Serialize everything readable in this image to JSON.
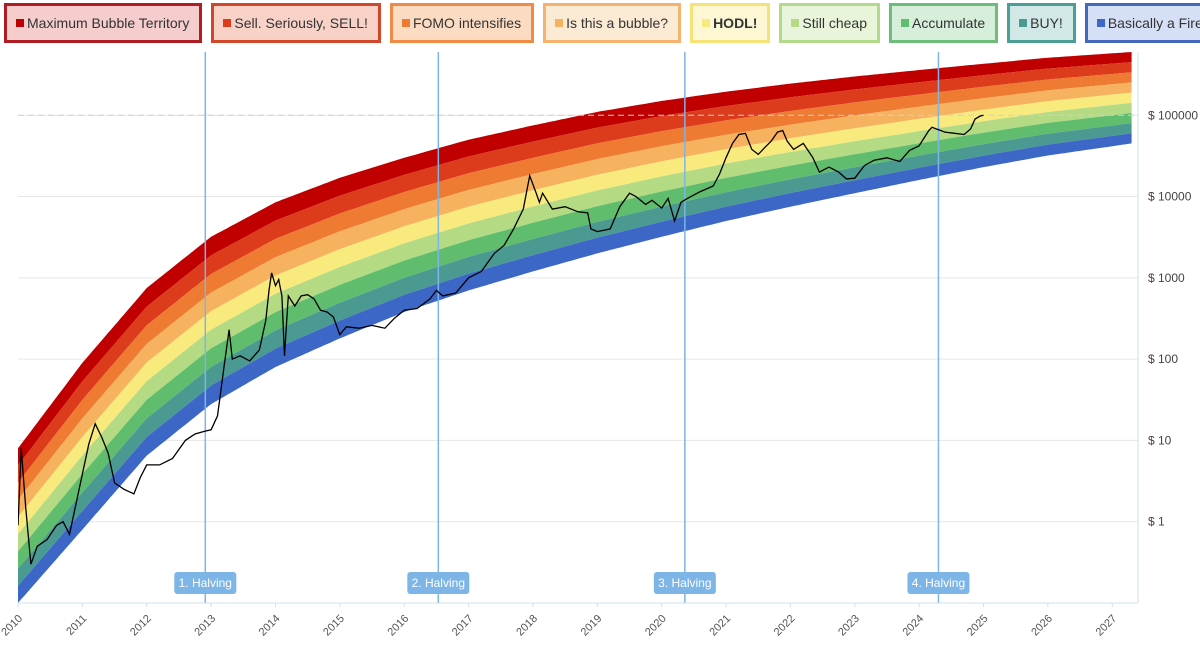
{
  "legend": [
    {
      "label": "Maximum Bubble Territory",
      "color": "#c00000",
      "bg": "#f5cdcd",
      "border": "#b01c24",
      "bold": false
    },
    {
      "label": "Sell. Seriously, SELL!",
      "color": "#dc3b1c",
      "bg": "#f8d1c7",
      "border": "#d2472a",
      "bold": false
    },
    {
      "label": "FOMO intensifies",
      "color": "#ef7a32",
      "bg": "#fbdcc3",
      "border": "#ef8b46",
      "bold": false
    },
    {
      "label": "Is this a bubble?",
      "color": "#f6b25e",
      "bg": "#fcebd4",
      "border": "#f4b36c",
      "bold": false
    },
    {
      "label": "HODL!",
      "color": "#f9ea7e",
      "bg": "#fdf7d4",
      "border": "#f5e37a",
      "bold": true
    },
    {
      "label": "Still cheap",
      "color": "#b4da84",
      "bg": "#e9f5da",
      "border": "#b3d98a",
      "bold": false
    },
    {
      "label": "Accumulate",
      "color": "#60bd6e",
      "bg": "#d6eeda",
      "border": "#6bbd79",
      "bold": false
    },
    {
      "label": "BUY!",
      "color": "#4a9a92",
      "bg": "#d1e8e7",
      "border": "#4e9e98",
      "bold": false
    },
    {
      "label": "Basically a Fire Sale",
      "color": "#3d67c6",
      "bg": "#d5dff5",
      "border": "#4468c0",
      "bold": false
    }
  ],
  "chart_data": {
    "type": "line",
    "y_scale": "log",
    "y_ticks": [
      {
        "value": 1,
        "label": "$ 1"
      },
      {
        "value": 10,
        "label": "$ 10"
      },
      {
        "value": 100,
        "label": "$ 100"
      },
      {
        "value": 1000,
        "label": "$ 1000"
      },
      {
        "value": 10000,
        "label": "$ 10000"
      },
      {
        "value": 100000,
        "label": "$ 100000"
      }
    ],
    "x_ticks": [
      2010,
      2011,
      2012,
      2013,
      2014,
      2015,
      2016,
      2017,
      2018,
      2019,
      2020,
      2021,
      2022,
      2023,
      2024,
      2025,
      2026,
      2027
    ],
    "xlim": [
      2010.0,
      2027.4
    ],
    "ylim": [
      0.1,
      600000
    ],
    "grid": true,
    "reference_line": {
      "value": 100000,
      "style": "dashed"
    },
    "halvings": [
      {
        "label": "1. Halving",
        "x": 2012.91
      },
      {
        "label": "2. Halving",
        "x": 2016.53
      },
      {
        "label": "3. Halving",
        "x": 2020.36
      },
      {
        "label": "4. Halving",
        "x": 2024.3
      }
    ],
    "bands": {
      "colors": [
        "#c00000",
        "#dc3b1c",
        "#ef7a32",
        "#f6b25e",
        "#f9ea7e",
        "#b4da84",
        "#60bd6e",
        "#4a9a92",
        "#3d67c6"
      ],
      "top_boundary": [
        [
          2010.0,
          8
        ],
        [
          2011.0,
          90
        ],
        [
          2012.0,
          750
        ],
        [
          2013.0,
          3200
        ],
        [
          2014.0,
          8500
        ],
        [
          2015.0,
          17000
        ],
        [
          2016.0,
          30000
        ],
        [
          2017.0,
          50000
        ],
        [
          2018.0,
          75000
        ],
        [
          2019.0,
          110000
        ],
        [
          2020.0,
          150000
        ],
        [
          2021.0,
          195000
        ],
        [
          2022.0,
          245000
        ],
        [
          2023.0,
          300000
        ],
        [
          2024.0,
          360000
        ],
        [
          2025.0,
          430000
        ],
        [
          2026.0,
          510000
        ],
        [
          2027.3,
          600000
        ]
      ],
      "bottom_boundary": [
        [
          2010.0,
          0.1
        ],
        [
          2011.0,
          0.8
        ],
        [
          2012.0,
          6.5
        ],
        [
          2013.0,
          28
        ],
        [
          2014.0,
          80
        ],
        [
          2015.0,
          180
        ],
        [
          2016.0,
          380
        ],
        [
          2017.0,
          700
        ],
        [
          2018.0,
          1200
        ],
        [
          2019.0,
          2000
        ],
        [
          2020.0,
          3200
        ],
        [
          2021.0,
          5000
        ],
        [
          2022.0,
          7500
        ],
        [
          2023.0,
          11000
        ],
        [
          2024.0,
          16000
        ],
        [
          2025.0,
          23000
        ],
        [
          2026.0,
          32000
        ],
        [
          2027.3,
          45000
        ]
      ]
    },
    "series": [
      {
        "color": "#000000",
        "points": [
          [
            2010.0,
            0.9
          ],
          [
            2010.05,
            8
          ],
          [
            2010.12,
            1.5
          ],
          [
            2010.2,
            0.3
          ],
          [
            2010.3,
            0.5
          ],
          [
            2010.45,
            0.6
          ],
          [
            2010.6,
            0.9
          ],
          [
            2010.7,
            1.0
          ],
          [
            2010.8,
            0.7
          ],
          [
            2010.95,
            2.5
          ],
          [
            2011.1,
            9
          ],
          [
            2011.2,
            16
          ],
          [
            2011.3,
            11
          ],
          [
            2011.4,
            7
          ],
          [
            2011.5,
            3
          ],
          [
            2011.65,
            2.5
          ],
          [
            2011.8,
            2.2
          ],
          [
            2011.9,
            3.5
          ],
          [
            2012.0,
            5
          ],
          [
            2012.2,
            5
          ],
          [
            2012.4,
            6
          ],
          [
            2012.6,
            10
          ],
          [
            2012.75,
            12
          ],
          [
            2012.9,
            13
          ],
          [
            2013.0,
            13.5
          ],
          [
            2013.1,
            20
          ],
          [
            2013.2,
            80
          ],
          [
            2013.28,
            230
          ],
          [
            2013.33,
            100
          ],
          [
            2013.45,
            110
          ],
          [
            2013.6,
            95
          ],
          [
            2013.75,
            130
          ],
          [
            2013.85,
            300
          ],
          [
            2013.9,
            700
          ],
          [
            2013.94,
            1150
          ],
          [
            2014.0,
            800
          ],
          [
            2014.05,
            950
          ],
          [
            2014.1,
            600
          ],
          [
            2014.14,
            110
          ],
          [
            2014.2,
            600
          ],
          [
            2014.3,
            450
          ],
          [
            2014.4,
            600
          ],
          [
            2014.5,
            620
          ],
          [
            2014.6,
            550
          ],
          [
            2014.7,
            400
          ],
          [
            2014.8,
            380
          ],
          [
            2014.9,
            330
          ],
          [
            2015.0,
            200
          ],
          [
            2015.1,
            250
          ],
          [
            2015.3,
            240
          ],
          [
            2015.5,
            260
          ],
          [
            2015.7,
            240
          ],
          [
            2015.85,
            320
          ],
          [
            2016.0,
            400
          ],
          [
            2016.2,
            420
          ],
          [
            2016.4,
            550
          ],
          [
            2016.5,
            700
          ],
          [
            2016.6,
            600
          ],
          [
            2016.8,
            650
          ],
          [
            2017.0,
            1000
          ],
          [
            2017.2,
            1200
          ],
          [
            2017.4,
            2000
          ],
          [
            2017.55,
            2500
          ],
          [
            2017.7,
            4000
          ],
          [
            2017.85,
            7000
          ],
          [
            2017.95,
            18000
          ],
          [
            2018.05,
            11000
          ],
          [
            2018.1,
            8500
          ],
          [
            2018.15,
            11000
          ],
          [
            2018.3,
            7000
          ],
          [
            2018.5,
            7500
          ],
          [
            2018.7,
            6500
          ],
          [
            2018.85,
            6300
          ],
          [
            2018.9,
            4000
          ],
          [
            2019.0,
            3700
          ],
          [
            2019.2,
            4000
          ],
          [
            2019.35,
            7500
          ],
          [
            2019.5,
            11000
          ],
          [
            2019.6,
            10000
          ],
          [
            2019.75,
            8000
          ],
          [
            2019.85,
            9000
          ],
          [
            2020.0,
            7200
          ],
          [
            2020.1,
            9500
          ],
          [
            2020.2,
            5000
          ],
          [
            2020.3,
            8500
          ],
          [
            2020.4,
            9500
          ],
          [
            2020.6,
            11500
          ],
          [
            2020.8,
            13500
          ],
          [
            2020.9,
            19000
          ],
          [
            2021.0,
            30000
          ],
          [
            2021.1,
            45000
          ],
          [
            2021.2,
            58000
          ],
          [
            2021.3,
            60000
          ],
          [
            2021.4,
            38000
          ],
          [
            2021.5,
            33000
          ],
          [
            2021.6,
            40000
          ],
          [
            2021.7,
            48000
          ],
          [
            2021.8,
            62000
          ],
          [
            2021.88,
            65000
          ],
          [
            2021.95,
            48000
          ],
          [
            2022.05,
            38000
          ],
          [
            2022.2,
            45000
          ],
          [
            2022.35,
            30000
          ],
          [
            2022.45,
            20000
          ],
          [
            2022.6,
            23000
          ],
          [
            2022.75,
            20000
          ],
          [
            2022.87,
            16500
          ],
          [
            2023.0,
            16800
          ],
          [
            2023.15,
            24000
          ],
          [
            2023.3,
            28000
          ],
          [
            2023.5,
            30000
          ],
          [
            2023.7,
            27000
          ],
          [
            2023.85,
            37000
          ],
          [
            2024.0,
            42000
          ],
          [
            2024.15,
            65000
          ],
          [
            2024.2,
            71000
          ],
          [
            2024.4,
            62000
          ],
          [
            2024.55,
            60000
          ],
          [
            2024.7,
            58000
          ],
          [
            2024.8,
            68000
          ],
          [
            2024.87,
            90000
          ],
          [
            2024.95,
            98000
          ],
          [
            2025.0,
            100000
          ]
        ]
      }
    ]
  }
}
